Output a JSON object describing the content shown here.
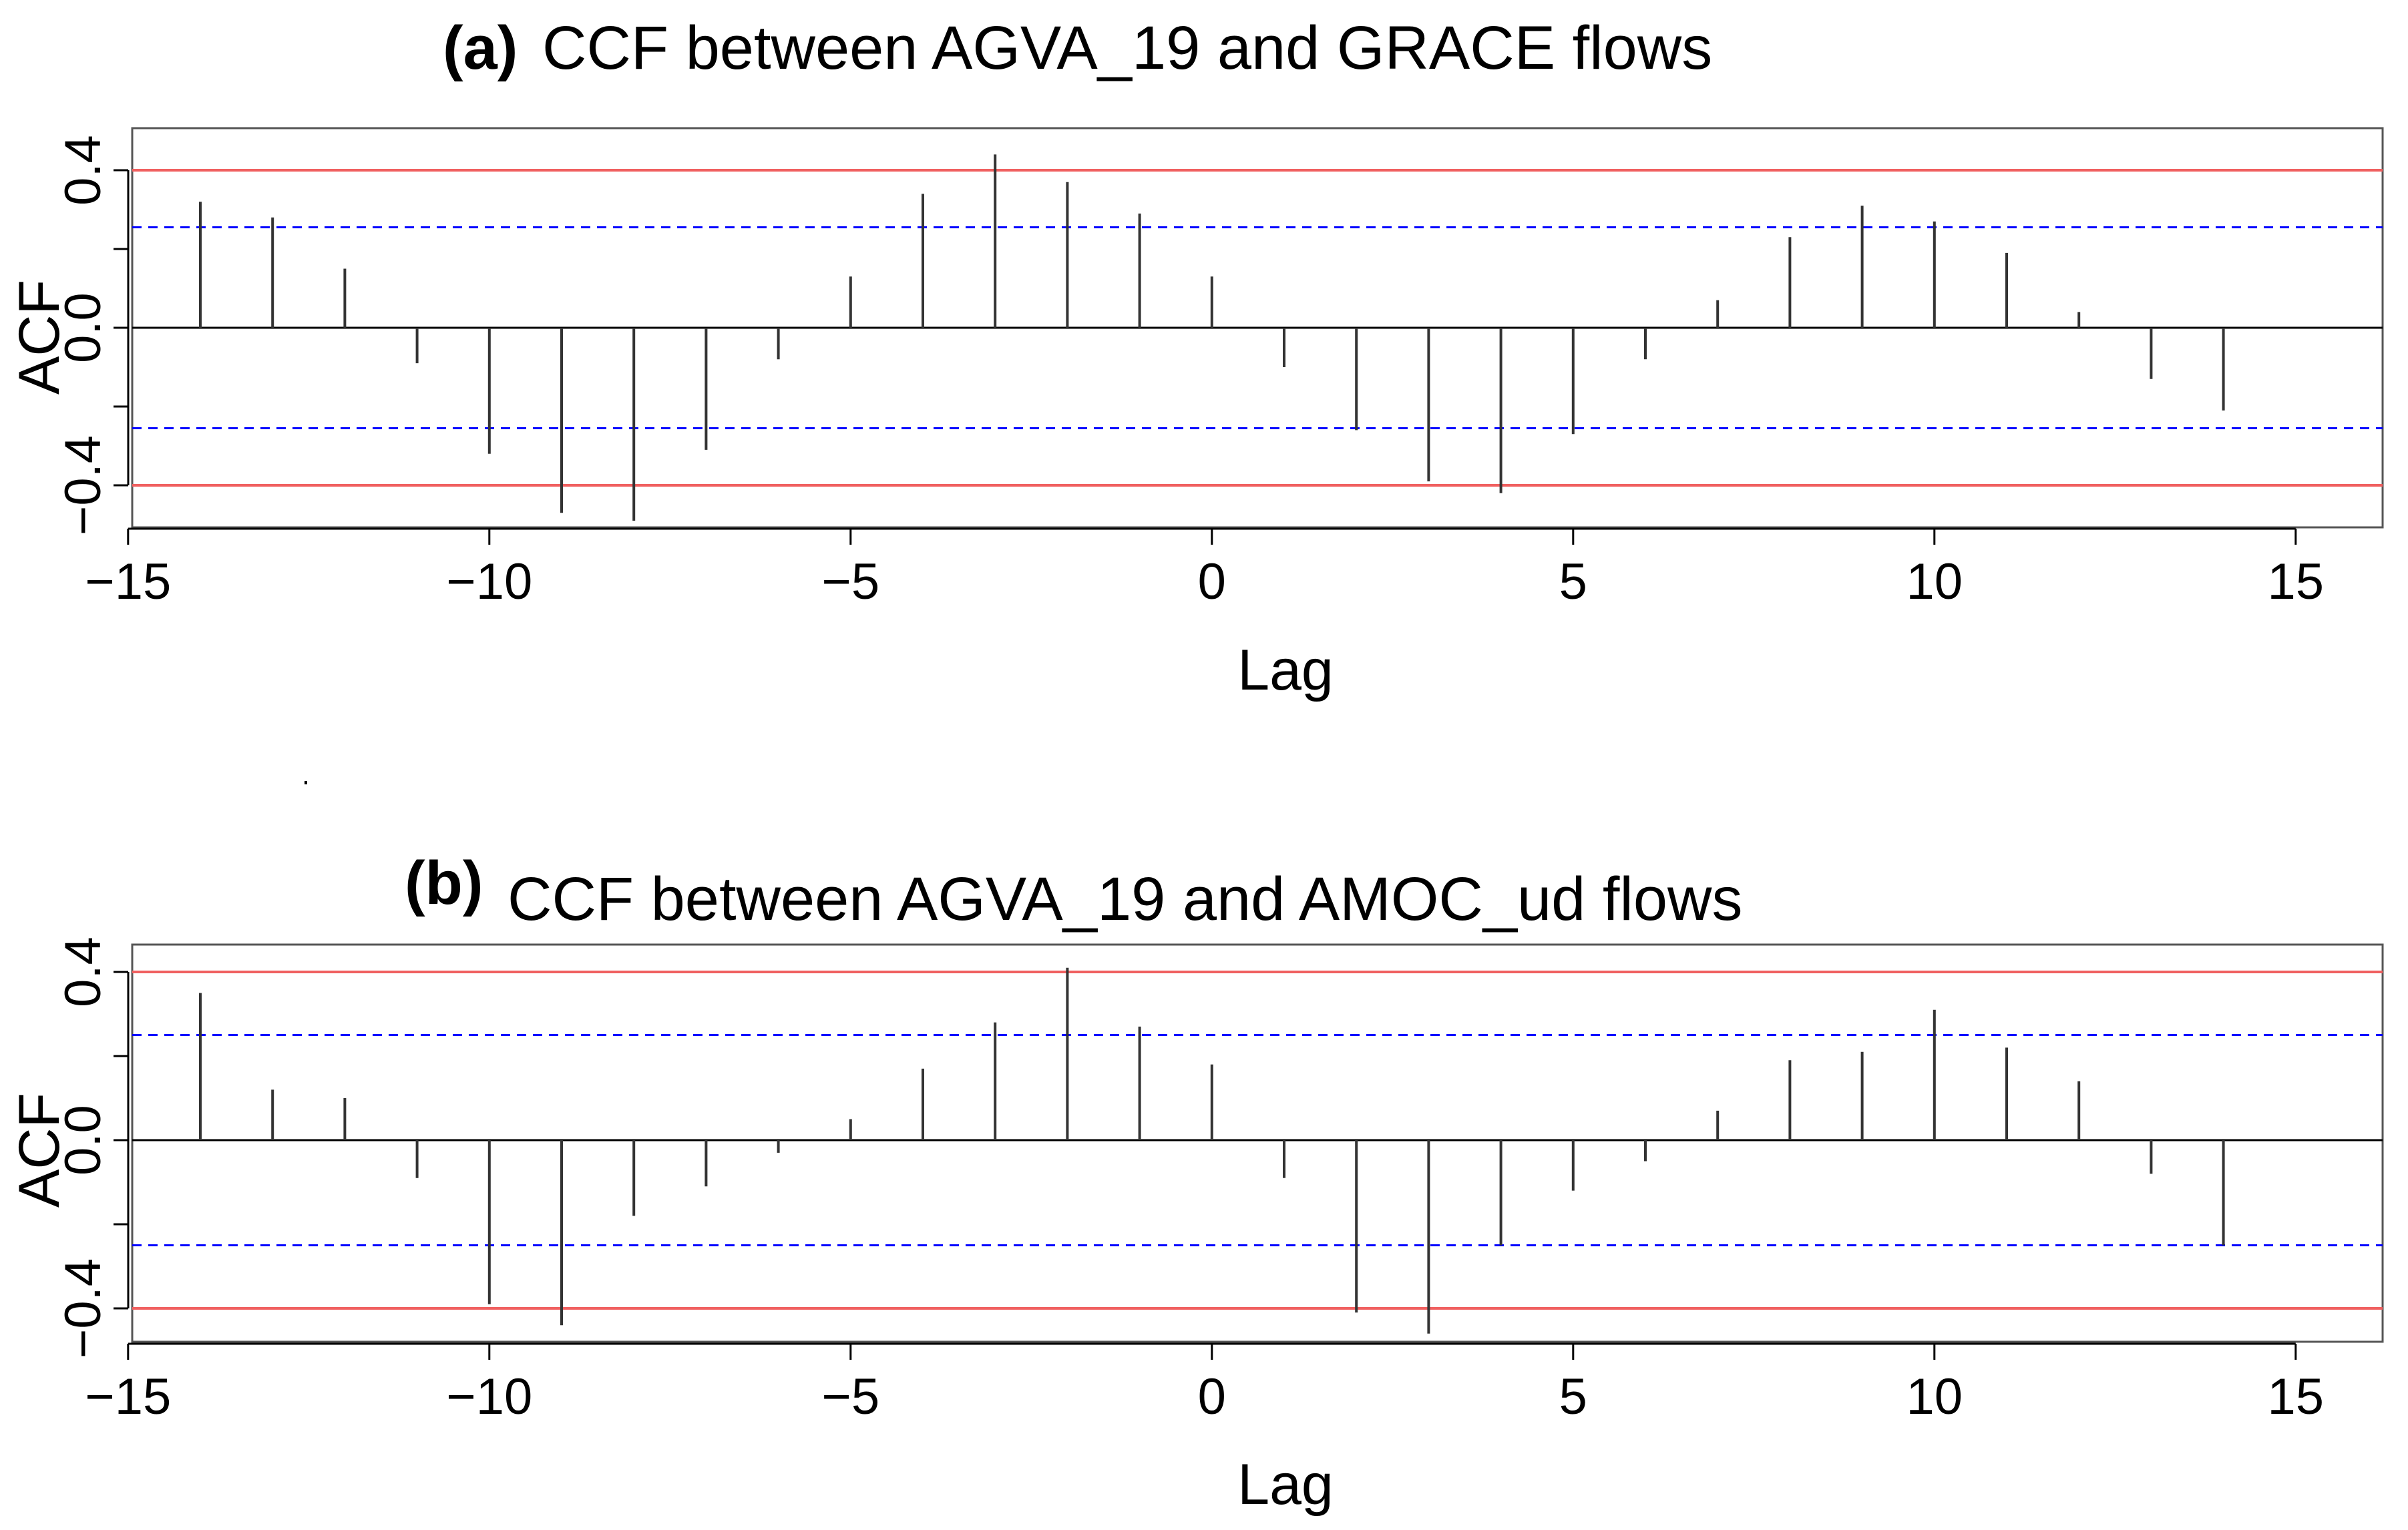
{
  "chart_data": [
    {
      "type": "bar",
      "panel": "a",
      "title_prefix": "(a)",
      "title": "CCF between AGVA_19 and GRACE flows",
      "xlabel": "Lag",
      "ylabel": "ACF",
      "xlim": [
        -15,
        15
      ],
      "ylim": [
        -0.5,
        0.45
      ],
      "x_ticks": [
        "−15",
        "−10",
        "−5",
        "0",
        "5",
        "10",
        "15"
      ],
      "y_ticks": [
        "−0.4",
        "0.0",
        "0.4"
      ],
      "lags": [
        -14,
        -13,
        -12,
        -11,
        -10,
        -9,
        -8,
        -7,
        -6,
        -5,
        -4,
        -3,
        -2,
        -1,
        0,
        1,
        2,
        3,
        4,
        5,
        6,
        7,
        8,
        9,
        10,
        11,
        12,
        13,
        14
      ],
      "values": [
        0.32,
        0.28,
        0.15,
        -0.09,
        -0.32,
        -0.47,
        -0.49,
        -0.31,
        -0.08,
        0.13,
        0.34,
        0.44,
        0.37,
        0.29,
        0.13,
        -0.1,
        -0.26,
        -0.39,
        -0.42,
        -0.27,
        -0.08,
        0.07,
        0.23,
        0.31,
        0.27,
        0.19,
        0.04,
        -0.13,
        -0.21
      ],
      "confidence_blue": 0.255,
      "confidence_red": 0.4,
      "colors": {
        "bars": "#333333",
        "blue_line": "#0000ff",
        "red_line": "#f06060",
        "zero_line": "#000000"
      }
    },
    {
      "type": "bar",
      "panel": "b",
      "title_prefix": "(b)",
      "title": "CCF between AGVA_19 and AMOC_ud flows",
      "xlabel": "Lag",
      "ylabel": "ACF",
      "xlim": [
        -15,
        15
      ],
      "ylim": [
        -0.5,
        0.45
      ],
      "x_ticks": [
        "−15",
        "−10",
        "−5",
        "0",
        "5",
        "10",
        "15"
      ],
      "y_ticks": [
        "−0.4",
        "0.0",
        "0.4"
      ],
      "lags": [
        -14,
        -13,
        -12,
        -11,
        -10,
        -9,
        -8,
        -7,
        -6,
        -5,
        -4,
        -3,
        -2,
        -1,
        0,
        1,
        2,
        3,
        4,
        5,
        6,
        7,
        8,
        9,
        10,
        11,
        12,
        13,
        14
      ],
      "values": [
        0.35,
        0.12,
        0.1,
        -0.09,
        -0.39,
        -0.44,
        -0.18,
        -0.11,
        -0.03,
        0.05,
        0.17,
        0.28,
        0.41,
        0.27,
        0.18,
        -0.09,
        -0.41,
        -0.46,
        -0.25,
        -0.12,
        -0.05,
        0.07,
        0.19,
        0.21,
        0.31,
        0.22,
        0.14,
        -0.08,
        -0.25
      ],
      "confidence_blue": 0.25,
      "confidence_red": 0.4,
      "colors": {
        "bars": "#333333",
        "blue_line": "#0000ff",
        "red_line": "#f06060",
        "zero_line": "#000000"
      }
    }
  ]
}
